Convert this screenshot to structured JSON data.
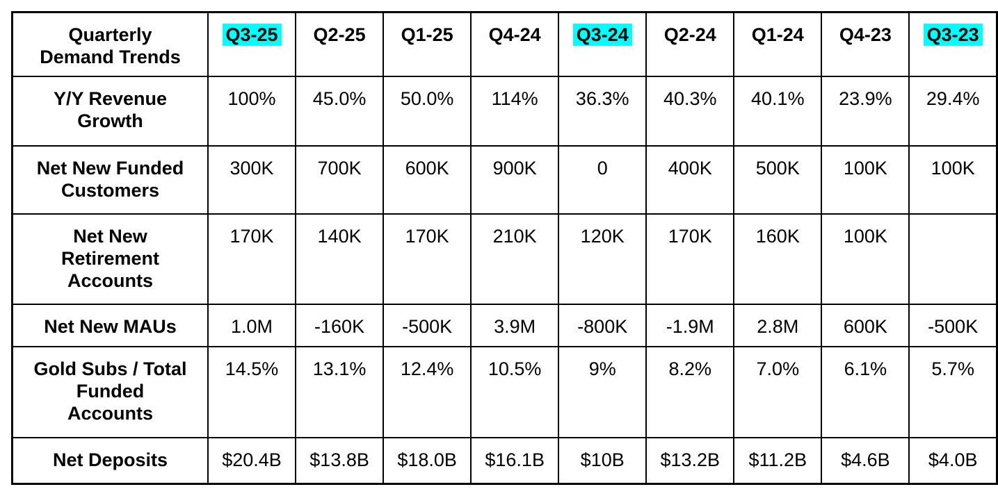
{
  "colors": {
    "highlight": "#00ffff",
    "border": "#000000",
    "text": "#000000",
    "background": "#ffffff"
  },
  "table": {
    "title": "Quarterly Demand Trends",
    "title_display": "Quarterly\nDemand Trends",
    "columns": [
      {
        "label": "Q3-25",
        "highlighted": true
      },
      {
        "label": "Q2-25",
        "highlighted": false
      },
      {
        "label": "Q1-25",
        "highlighted": false
      },
      {
        "label": "Q4-24",
        "highlighted": false
      },
      {
        "label": "Q3-24",
        "highlighted": true
      },
      {
        "label": "Q2-24",
        "highlighted": false
      },
      {
        "label": "Q1-24",
        "highlighted": false
      },
      {
        "label": "Q4-23",
        "highlighted": false
      },
      {
        "label": "Q3-23",
        "highlighted": true
      }
    ],
    "rows": [
      {
        "label": "Y/Y Revenue Growth",
        "label_display": "Y/Y Revenue\nGrowth",
        "values": [
          "100%",
          "45.0%",
          "50.0%",
          "114%",
          "36.3%",
          "40.3%",
          "40.1%",
          "23.9%",
          "29.4%"
        ]
      },
      {
        "label": "Net New Funded Customers",
        "label_display": "Net New Funded\nCustomers",
        "values": [
          "300K",
          "700K",
          "600K",
          "900K",
          "0",
          "400K",
          "500K",
          "100K",
          "100K"
        ]
      },
      {
        "label": "Net New Retirement Accounts",
        "label_display": "Net New\nRetirement\nAccounts",
        "values": [
          "170K",
          "140K",
          "170K",
          "210K",
          "120K",
          "170K",
          "160K",
          "100K",
          ""
        ]
      },
      {
        "label": "Net New MAUs",
        "label_display": "Net New MAUs",
        "values": [
          "1.0M",
          "-160K",
          "-500K",
          "3.9M",
          "-800K",
          "-1.9M",
          "2.8M",
          "600K",
          "-500K"
        ]
      },
      {
        "label": "Gold Subs / Total Funded Accounts",
        "label_display": "Gold Subs / Total\nFunded\nAccounts",
        "values": [
          "14.5%",
          "13.1%",
          "12.4%",
          "10.5%",
          "9%",
          "8.2%",
          "7.0%",
          "6.1%",
          "5.7%"
        ]
      },
      {
        "label": "Net Deposits",
        "label_display": "Net Deposits",
        "values": [
          "$20.4B",
          "$13.8B",
          "$18.0B",
          "$16.1B",
          "$10B",
          "$13.2B",
          "$11.2B",
          "$4.6B",
          "$4.0B"
        ]
      }
    ]
  },
  "chart_data": {
    "type": "table",
    "title": "Quarterly Demand Trends",
    "categories": [
      "Q3-25",
      "Q2-25",
      "Q1-25",
      "Q4-24",
      "Q3-24",
      "Q2-24",
      "Q1-24",
      "Q4-23",
      "Q3-23"
    ],
    "highlighted_columns": [
      "Q3-25",
      "Q3-24",
      "Q3-23"
    ],
    "series": [
      {
        "name": "Y/Y Revenue Growth",
        "values": [
          "100%",
          "45.0%",
          "50.0%",
          "114%",
          "36.3%",
          "40.3%",
          "40.1%",
          "23.9%",
          "29.4%"
        ]
      },
      {
        "name": "Net New Funded Customers",
        "values": [
          "300K",
          "700K",
          "600K",
          "900K",
          "0",
          "400K",
          "500K",
          "100K",
          "100K"
        ]
      },
      {
        "name": "Net New Retirement Accounts",
        "values": [
          "170K",
          "140K",
          "170K",
          "210K",
          "120K",
          "170K",
          "160K",
          "100K",
          null
        ]
      },
      {
        "name": "Net New MAUs",
        "values": [
          "1.0M",
          "-160K",
          "-500K",
          "3.9M",
          "-800K",
          "-1.9M",
          "2.8M",
          "600K",
          "-500K"
        ]
      },
      {
        "name": "Gold Subs / Total Funded Accounts",
        "values": [
          "14.5%",
          "13.1%",
          "12.4%",
          "10.5%",
          "9%",
          "8.2%",
          "7.0%",
          "6.1%",
          "5.7%"
        ]
      },
      {
        "name": "Net Deposits",
        "values": [
          "$20.4B",
          "$13.8B",
          "$18.0B",
          "$16.1B",
          "$10B",
          "$13.2B",
          "$11.2B",
          "$4.6B",
          "$4.0B"
        ]
      }
    ],
    "legend_position": "none",
    "grid": true
  }
}
